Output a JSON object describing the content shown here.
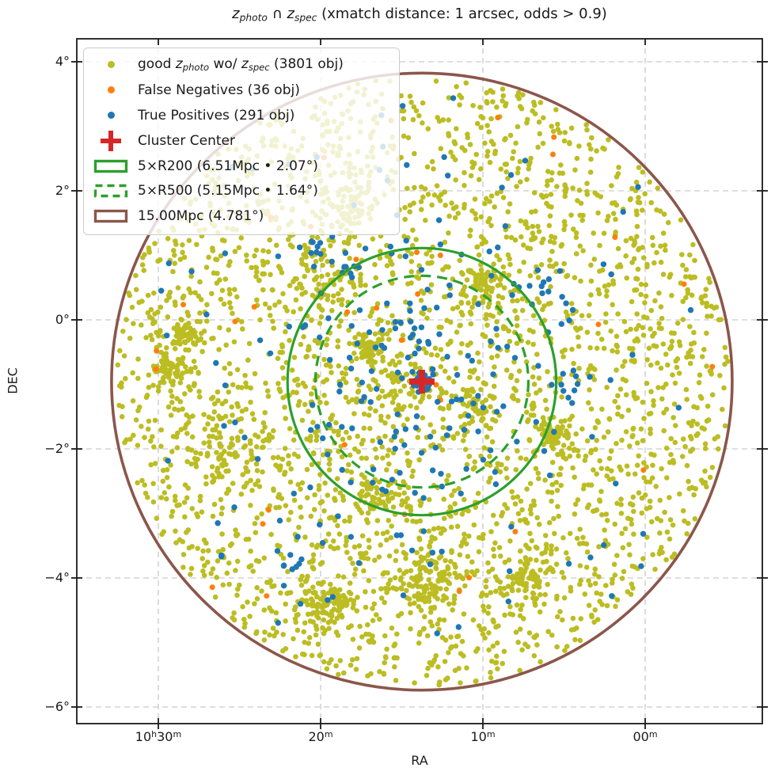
{
  "figure": {
    "background": "#ffffff"
  },
  "chart_data": {
    "type": "scatter",
    "title": "z_photo ∩ z_spec (xmatch distance: 1 arcsec, odds > 0.9)",
    "title_parts": [
      {
        "var": "z",
        "sub": "photo"
      },
      {
        "text": " ∩ "
      },
      {
        "var": "z",
        "sub": "spec"
      },
      {
        "text": " (xmatch distance: 1 arcsec, odds > 0.9)"
      }
    ],
    "xlabel": "RA",
    "ylabel": "DEC",
    "x_axis": {
      "inverted": true,
      "unit": "hourangle",
      "range_ra_deg": [
        158.76,
        148.2
      ],
      "ticks": [
        {
          "ra_deg": 157.5,
          "parts": [
            {
              "t": "10",
              "sup": "h"
            },
            {
              "t": "30",
              "sup": "m"
            }
          ]
        },
        {
          "ra_deg": 155.0,
          "parts": [
            {
              "t": "20",
              "sup": "m"
            }
          ]
        },
        {
          "ra_deg": 152.5,
          "parts": [
            {
              "t": "10",
              "sup": "m"
            }
          ]
        },
        {
          "ra_deg": 150.0,
          "parts": [
            {
              "t": "00",
              "sup": "m"
            }
          ]
        }
      ]
    },
    "y_axis": {
      "range_dec_deg": [
        -6.26,
        4.36
      ],
      "ticks": [
        {
          "dec_deg": 4,
          "label": "4°"
        },
        {
          "dec_deg": 2,
          "label": "2°"
        },
        {
          "dec_deg": 0,
          "label": "0°"
        },
        {
          "dec_deg": -2,
          "label": "−2°"
        },
        {
          "dec_deg": -4,
          "label": "−4°"
        },
        {
          "dec_deg": -6,
          "label": "−6°"
        }
      ]
    },
    "grid": {
      "show": true,
      "color": "#c9c9c9",
      "dash": [
        7,
        5
      ]
    },
    "cluster_center": {
      "ra_deg": 153.44,
      "dec_deg": -0.957,
      "marker": "plus",
      "color": "#d62728"
    },
    "series": [
      {
        "id": "good_zphoto",
        "label": "good z_photo wo/ z_spec (3801 obj)",
        "count": 3801,
        "color": "#bcbd22",
        "marker_r_px": 3.3,
        "distribution": "uniform_in_survey_circle_with_clumps"
      },
      {
        "id": "false_negatives",
        "label": "False Negatives (36 obj)",
        "count": 36,
        "color": "#ff7f0e",
        "marker_r_px": 3.5,
        "distribution": "sparse_uniform"
      },
      {
        "id": "true_positives",
        "label": "True Positives (291 obj)",
        "count": 291,
        "color": "#1f77b4",
        "marker_r_px": 3.7,
        "distribution": "concentrated_toward_center"
      }
    ],
    "circles": [
      {
        "id": "r200",
        "label": "5×R200",
        "radius_deg": 2.07,
        "radius_mpc": 6.51,
        "color": "#2ca02c",
        "style": "solid",
        "stroke_px": 3.2
      },
      {
        "id": "r500",
        "label": "5×R500",
        "radius_deg": 1.64,
        "radius_mpc": 5.15,
        "color": "#2ca02c",
        "style": "dashed",
        "stroke_px": 3.2
      },
      {
        "id": "mpc15",
        "label": "15.00Mpc",
        "radius_deg": 4.781,
        "radius_mpc": 15.0,
        "color": "#8c564b",
        "style": "solid",
        "stroke_px": 3.6
      }
    ],
    "legend_position": "upper left",
    "seed": 42
  },
  "legend": {
    "entries": [
      {
        "name": "good-zphoto",
        "swatch": {
          "type": "dot",
          "color": "#bcbd22"
        },
        "parts": [
          {
            "text": "good "
          },
          {
            "var": "z",
            "sub": "photo"
          },
          {
            "text": " wo/ "
          },
          {
            "var": "z",
            "sub": "spec"
          },
          {
            "text": " (3801 obj)"
          }
        ]
      },
      {
        "name": "false-negatives",
        "swatch": {
          "type": "dot",
          "color": "#ff7f0e"
        },
        "parts": [
          {
            "text": "False Negatives (36 obj)"
          }
        ]
      },
      {
        "name": "true-positives",
        "swatch": {
          "type": "dot",
          "color": "#1f77b4"
        },
        "parts": [
          {
            "text": "True Positives (291 obj)"
          }
        ]
      },
      {
        "name": "cluster-center",
        "swatch": {
          "type": "plus",
          "color": "#d62728"
        },
        "parts": [
          {
            "text": "Cluster Center"
          }
        ]
      },
      {
        "name": "r200",
        "swatch": {
          "type": "rect",
          "color": "#2ca02c",
          "dash": "solid"
        },
        "parts": [
          {
            "text": "5×R200 (6.51Mpc • 2.07°)"
          }
        ]
      },
      {
        "name": "r500",
        "swatch": {
          "type": "rect",
          "color": "#2ca02c",
          "dash": "dashed"
        },
        "parts": [
          {
            "text": "5×R500 (5.15Mpc • 1.64°)"
          }
        ]
      },
      {
        "name": "mpc15",
        "swatch": {
          "type": "rect",
          "color": "#8c564b",
          "dash": "solid"
        },
        "parts": [
          {
            "text": "15.00Mpc (4.781°)"
          }
        ]
      }
    ]
  }
}
